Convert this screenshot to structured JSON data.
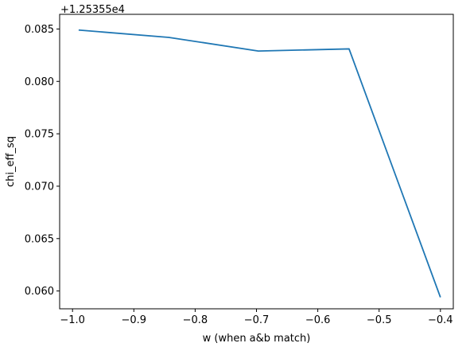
{
  "chart_data": {
    "type": "line",
    "title": "",
    "xlabel": "w (when a&b match)",
    "ylabel": "chi_eff_sq",
    "y_offset_text": "+1.25355e4",
    "xlim": [
      -1.021,
      -0.379
    ],
    "ylim": [
      0.0583,
      0.0864
    ],
    "x_ticks": [
      -1.0,
      -0.9,
      -0.8,
      -0.7,
      -0.6,
      -0.5,
      -0.4
    ],
    "x_tick_labels": [
      "−1.0",
      "−0.9",
      "−0.8",
      "−0.7",
      "−0.6",
      "−0.5",
      "−0.4"
    ],
    "y_ticks": [
      0.06,
      0.065,
      0.07,
      0.075,
      0.08,
      0.085
    ],
    "y_tick_labels": [
      "0.060",
      "0.065",
      "0.070",
      "0.075",
      "0.080",
      "0.085"
    ],
    "grid": false,
    "series": [
      {
        "color": "#1f77b4",
        "x": [
          -0.99,
          -0.843,
          -0.697,
          -0.549,
          -0.4
        ],
        "y": [
          0.0849,
          0.0842,
          0.0829,
          0.0831,
          0.0594
        ]
      }
    ]
  }
}
